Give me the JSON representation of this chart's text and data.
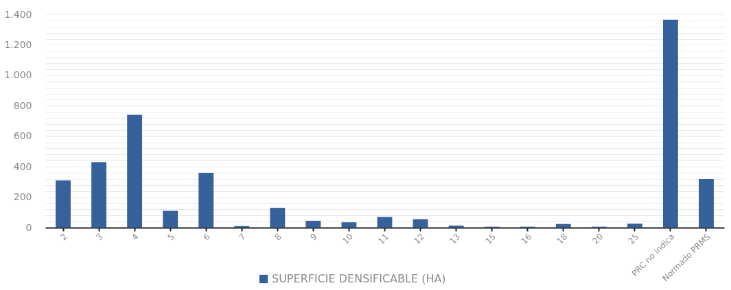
{
  "chart_data": {
    "type": "bar",
    "categories": [
      "2",
      "3",
      "4",
      "5",
      "6",
      "7",
      "8",
      "9",
      "10",
      "11",
      "12",
      "13",
      "15",
      "16",
      "18",
      "20",
      "25",
      "PRC no indica",
      "Normado PRMS"
    ],
    "series": [
      {
        "name": "SUPERFICIE DENSIFICABLE (HA)",
        "color": "#36619a",
        "values": [
          310,
          430,
          740,
          110,
          360,
          10,
          130,
          45,
          35,
          70,
          55,
          13,
          6,
          6,
          24,
          6,
          26,
          1365,
          320
        ]
      }
    ],
    "ylim": [
      0,
      1400
    ],
    "yticks": [
      0,
      {
        "value": 40,
        "label": null
      },
      {
        "value": 80,
        "label": null
      },
      {
        "value": 120,
        "label": null
      },
      {
        "value": 160,
        "label": null
      },
      {
        "value": 200,
        "label": "200"
      },
      {
        "value": 240,
        "label": null
      },
      {
        "value": 280,
        "label": null
      },
      {
        "value": 320,
        "label": null
      },
      {
        "value": 360,
        "label": null
      },
      {
        "value": 400,
        "label": "400"
      },
      {
        "value": 440,
        "label": null
      },
      {
        "value": 480,
        "label": null
      },
      {
        "value": 520,
        "label": null
      },
      {
        "value": 560,
        "label": null
      },
      {
        "value": 600,
        "label": "600"
      },
      {
        "value": 640,
        "label": null
      },
      {
        "value": 680,
        "label": null
      },
      {
        "value": 720,
        "label": null
      },
      {
        "value": 760,
        "label": null
      },
      {
        "value": 800,
        "label": "800"
      },
      {
        "value": 840,
        "label": null
      },
      {
        "value": 880,
        "label": null
      },
      {
        "value": 920,
        "label": null
      },
      {
        "value": 960,
        "label": null
      },
      {
        "value": 1000,
        "label": "1.000"
      },
      {
        "value": 1040,
        "label": null
      },
      {
        "value": 1080,
        "label": null
      },
      {
        "value": 1120,
        "label": null
      },
      {
        "value": 1160,
        "label": null
      },
      {
        "value": 1200,
        "label": "1.200"
      },
      {
        "value": 1240,
        "label": null
      },
      {
        "value": 1280,
        "label": null
      },
      {
        "value": 1320,
        "label": null
      },
      {
        "value": 1360,
        "label": null
      },
      {
        "value": 1400,
        "label": "1.400"
      }
    ],
    "grid": "y",
    "legend": "bottom"
  }
}
